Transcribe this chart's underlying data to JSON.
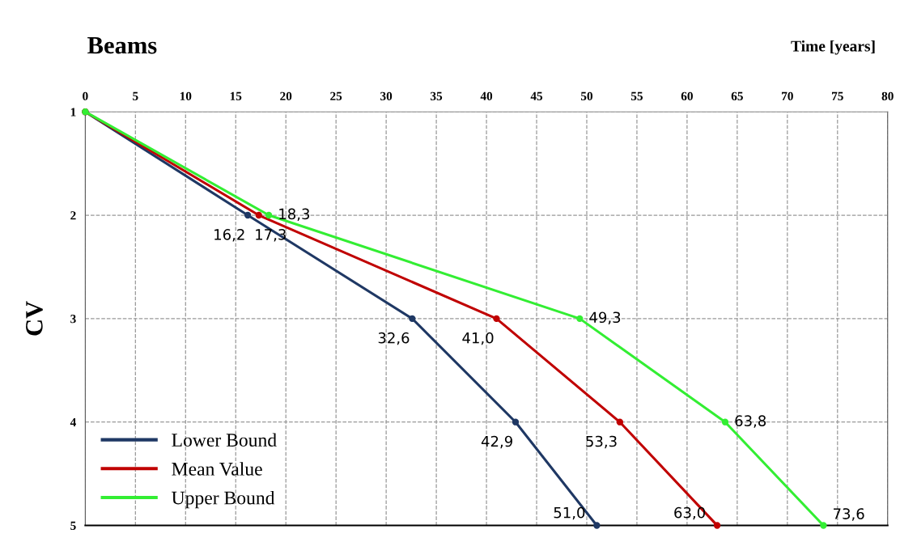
{
  "chart_data": {
    "type": "line",
    "orientation": "horizontal",
    "title": "Beams",
    "xlabel": "Time [years]",
    "ylabel": "CV",
    "xlim": [
      0,
      80
    ],
    "xticks": [
      0,
      5,
      10,
      15,
      20,
      25,
      30,
      35,
      40,
      45,
      50,
      55,
      60,
      65,
      70,
      75,
      80
    ],
    "categories": [
      "1",
      "2",
      "3",
      "4",
      "5"
    ],
    "grid": true,
    "legend": "bottom left",
    "marker": "circle",
    "line_style": "solid",
    "series": [
      {
        "name": "Lower Bound",
        "color": "#1f3864",
        "values": [
          0,
          16.2,
          32.6,
          42.9,
          51.0
        ],
        "value_labels": [
          null,
          "16,2",
          "32,6",
          "42,9",
          "51,0"
        ]
      },
      {
        "name": "Mean Value",
        "color": "#c00000",
        "values": [
          0,
          17.3,
          41.0,
          53.3,
          63.0
        ],
        "value_labels": [
          null,
          "17,3",
          "41,0",
          "53,3",
          "63,0"
        ]
      },
      {
        "name": "Upper Bound",
        "color": "#33ee33",
        "values": [
          0,
          18.3,
          49.3,
          63.8,
          73.6
        ],
        "value_labels": [
          null,
          "18,3",
          "49,3",
          "63,8",
          "73,6"
        ]
      }
    ]
  }
}
